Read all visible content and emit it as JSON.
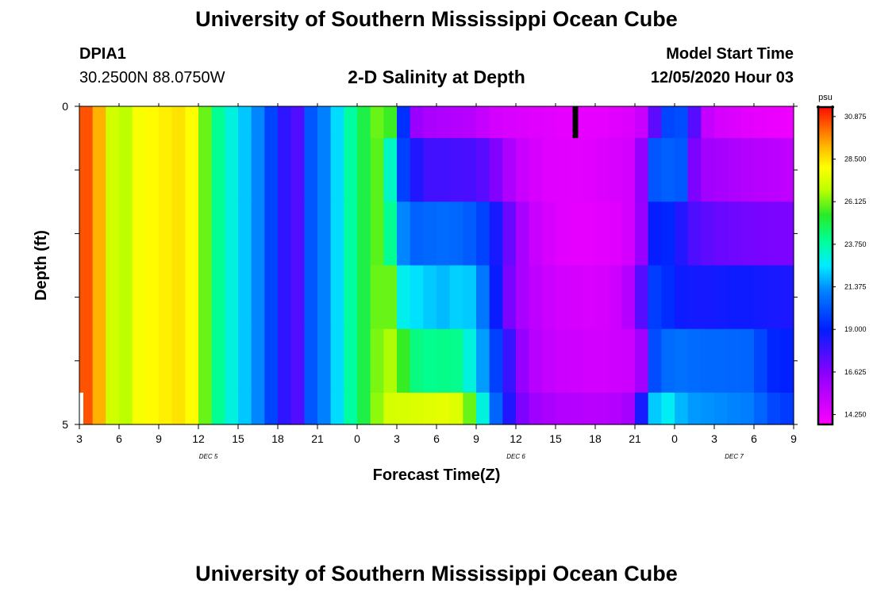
{
  "header": {
    "title": "University of Southern Mississippi Ocean Cube",
    "station_id": "DPIA1",
    "coordinates": "30.2500N 88.0750W",
    "chart_title": "2-D Salinity at Depth",
    "start_label": "Model Start Time",
    "start_value": "12/05/2020 Hour 03"
  },
  "footer": {
    "title": "University of Southern Mississippi Ocean Cube"
  },
  "chart_data": {
    "type": "heatmap",
    "title": "2-D Salinity at Depth",
    "xlabel": "Forecast Time(Z)",
    "ylabel": "Depth (ft)",
    "x_ticks": [
      "3",
      "6",
      "9",
      "12",
      "15",
      "18",
      "21",
      "0",
      "3",
      "6",
      "9",
      "12",
      "15",
      "18",
      "21",
      "0",
      "3",
      "6",
      "9"
    ],
    "x_range_hours": [
      0,
      54
    ],
    "date_labels": [
      {
        "text": "DEC 5",
        "hour": 9.75
      },
      {
        "text": "DEC 6",
        "hour": 33
      },
      {
        "text": "DEC 7",
        "hour": 49.5
      }
    ],
    "y_ticks": [
      "0",
      "5"
    ],
    "ylim": [
      0,
      5
    ],
    "depth_layer_bounds": [
      0,
      0.5,
      1.5,
      2.5,
      3.5,
      4.5,
      5
    ],
    "colorbar": {
      "unit": "psu",
      "ticks": [
        "30.875",
        "28.500",
        "26.125",
        "23.750",
        "21.375",
        "19.000",
        "16.625",
        "14.250"
      ],
      "range": [
        13.7,
        31.4
      ]
    },
    "salinity_profiles": [
      {
        "layer": "surface",
        "points": [
          [
            0,
            31
          ],
          [
            1,
            30
          ],
          [
            2,
            28.5
          ],
          [
            3,
            25.8
          ],
          [
            4,
            27.8
          ],
          [
            8,
            28.6
          ],
          [
            9,
            27.5
          ],
          [
            10,
            24.5
          ],
          [
            12,
            22.5
          ],
          [
            13.5,
            21.2
          ],
          [
            14.5,
            19.8
          ],
          [
            15.5,
            18.2
          ],
          [
            16,
            17.4
          ],
          [
            16.5,
            17.6
          ],
          [
            17,
            18.2
          ],
          [
            17.5,
            20.2
          ],
          [
            19,
            21.5
          ],
          [
            20,
            23.2
          ],
          [
            21,
            24.5
          ],
          [
            22,
            25.5
          ],
          [
            23,
            26.5
          ],
          [
            23.8,
            25
          ],
          [
            24.3,
            21
          ],
          [
            24.6,
            18.6
          ],
          [
            25,
            17.3
          ],
          [
            25.3,
            16.3
          ],
          [
            26,
            15.8
          ],
          [
            30,
            15.4
          ],
          [
            31,
            14.8
          ],
          [
            33,
            14.6
          ],
          [
            37,
            14.3
          ],
          [
            39,
            14.3
          ],
          [
            42,
            14.6
          ],
          [
            43,
            15.4
          ],
          [
            43.3,
            16.6
          ],
          [
            44,
            19.2
          ],
          [
            45,
            20.5
          ],
          [
            46,
            19.5
          ],
          [
            46.5,
            17.5
          ],
          [
            47,
            15.5
          ],
          [
            48,
            14.8
          ],
          [
            51,
            14.3
          ],
          [
            54,
            14.1
          ]
        ]
      },
      {
        "layer": "layer2",
        "points": [
          [
            0,
            31
          ],
          [
            1,
            30
          ],
          [
            2,
            28.5
          ],
          [
            3,
            25.8
          ],
          [
            4,
            27.8
          ],
          [
            8,
            28.6
          ],
          [
            9,
            27.5
          ],
          [
            10,
            24.5
          ],
          [
            12,
            22.5
          ],
          [
            13.5,
            21.2
          ],
          [
            14.5,
            19.8
          ],
          [
            15.5,
            18.2
          ],
          [
            16,
            17.4
          ],
          [
            16.5,
            17.6
          ],
          [
            17,
            18.2
          ],
          [
            17.5,
            20.2
          ],
          [
            19,
            21.5
          ],
          [
            20,
            23.2
          ],
          [
            21,
            24.5
          ],
          [
            22,
            25.5
          ],
          [
            23,
            26.2
          ],
          [
            24,
            20.5
          ],
          [
            25,
            19
          ],
          [
            26,
            17.9
          ],
          [
            30,
            17.7
          ],
          [
            31,
            17.2
          ],
          [
            32,
            16.2
          ],
          [
            33,
            15.2
          ],
          [
            35,
            14.5
          ],
          [
            38,
            14.4
          ],
          [
            42,
            14.8
          ],
          [
            42.5,
            16.3
          ],
          [
            43,
            19
          ],
          [
            43.5,
            20.2
          ],
          [
            45,
            20.5
          ],
          [
            46,
            20
          ],
          [
            46.5,
            16.8
          ],
          [
            47.5,
            16
          ],
          [
            49,
            15.8
          ],
          [
            51,
            15.5
          ],
          [
            54,
            15.2
          ]
        ]
      },
      {
        "layer": "layer3",
        "points": [
          [
            0,
            31
          ],
          [
            1,
            30
          ],
          [
            2,
            28.5
          ],
          [
            3,
            25.8
          ],
          [
            4,
            27.8
          ],
          [
            8,
            28.6
          ],
          [
            9,
            27.5
          ],
          [
            10,
            24.5
          ],
          [
            12,
            22.5
          ],
          [
            13.5,
            21.2
          ],
          [
            14.5,
            19.8
          ],
          [
            15.5,
            18.2
          ],
          [
            16,
            17.4
          ],
          [
            16.5,
            17.6
          ],
          [
            17,
            18.2
          ],
          [
            17.5,
            20.2
          ],
          [
            19,
            21.5
          ],
          [
            20,
            23.2
          ],
          [
            21,
            24.5
          ],
          [
            22,
            25.5
          ],
          [
            23,
            26.2
          ],
          [
            23.5,
            24
          ],
          [
            24,
            22
          ],
          [
            25,
            20.4
          ],
          [
            28,
            20.7
          ],
          [
            30,
            20.2
          ],
          [
            31,
            19.4
          ],
          [
            32,
            17.8
          ],
          [
            33,
            16.4
          ],
          [
            34,
            15.2
          ],
          [
            36,
            14.5
          ],
          [
            38,
            14.3
          ],
          [
            41,
            14.5
          ],
          [
            42,
            15
          ],
          [
            42.5,
            16.2
          ],
          [
            43,
            18.5
          ],
          [
            44,
            19.3
          ],
          [
            45,
            19
          ],
          [
            46,
            17.8
          ],
          [
            48,
            17.2
          ],
          [
            51,
            16.9
          ],
          [
            54,
            16.8
          ]
        ]
      },
      {
        "layer": "layer4",
        "points": [
          [
            0,
            31
          ],
          [
            1,
            30
          ],
          [
            2,
            28.5
          ],
          [
            3,
            25.8
          ],
          [
            4,
            27.8
          ],
          [
            8,
            28.6
          ],
          [
            9,
            27.5
          ],
          [
            10,
            24.5
          ],
          [
            12,
            22.5
          ],
          [
            13.5,
            21.2
          ],
          [
            14.5,
            19.8
          ],
          [
            15.5,
            18.2
          ],
          [
            16,
            17.4
          ],
          [
            16.5,
            17.6
          ],
          [
            17,
            18.2
          ],
          [
            17.5,
            20.2
          ],
          [
            19,
            21.5
          ],
          [
            20,
            23.2
          ],
          [
            21,
            24.5
          ],
          [
            22,
            25.5
          ],
          [
            23,
            26.5
          ],
          [
            24,
            25.5
          ],
          [
            24.5,
            22.8
          ],
          [
            26,
            22.2
          ],
          [
            28,
            21.8
          ],
          [
            29,
            22.6
          ],
          [
            30,
            21.6
          ],
          [
            31,
            20.2
          ],
          [
            32,
            17.5
          ],
          [
            33,
            16.2
          ],
          [
            34,
            15.4
          ],
          [
            36,
            14.8
          ],
          [
            39,
            14.6
          ],
          [
            41,
            15
          ],
          [
            42,
            16
          ],
          [
            42.5,
            17.5
          ],
          [
            43,
            19.6
          ],
          [
            44,
            19.8
          ],
          [
            45,
            18.8
          ],
          [
            47,
            18.6
          ],
          [
            50,
            18.8
          ],
          [
            52,
            18.6
          ],
          [
            54,
            18.5
          ]
        ]
      },
      {
        "layer": "layer5",
        "points": [
          [
            0,
            31
          ],
          [
            1,
            30
          ],
          [
            2,
            28.5
          ],
          [
            3,
            25.8
          ],
          [
            4,
            27.8
          ],
          [
            8,
            28.6
          ],
          [
            9,
            27.5
          ],
          [
            10,
            24.5
          ],
          [
            12,
            22.5
          ],
          [
            13.5,
            21.2
          ],
          [
            14.5,
            19.8
          ],
          [
            15.5,
            18.2
          ],
          [
            16,
            17.4
          ],
          [
            16.5,
            17.6
          ],
          [
            17,
            18.2
          ],
          [
            17.5,
            20.2
          ],
          [
            19,
            21.5
          ],
          [
            20,
            23.2
          ],
          [
            21,
            24.5
          ],
          [
            22,
            25.5
          ],
          [
            23,
            26.8
          ],
          [
            24,
            26.5
          ],
          [
            25,
            24.5
          ],
          [
            26,
            24
          ],
          [
            28,
            24.2
          ],
          [
            29,
            24
          ],
          [
            29.5,
            23
          ],
          [
            30.5,
            21.5
          ],
          [
            31,
            20.5
          ],
          [
            32,
            19
          ],
          [
            33,
            17
          ],
          [
            34,
            15.6
          ],
          [
            36,
            15
          ],
          [
            39,
            14.8
          ],
          [
            42,
            15
          ],
          [
            42.5,
            16
          ],
          [
            43,
            19.5
          ],
          [
            44,
            20.5
          ],
          [
            45,
            20.8
          ],
          [
            47,
            20.6
          ],
          [
            51,
            20.5
          ],
          [
            52,
            19.2
          ],
          [
            54,
            19
          ]
        ]
      },
      {
        "layer": "bottom",
        "points": [
          [
            0,
            31
          ],
          [
            1,
            30
          ],
          [
            2,
            28.5
          ],
          [
            3,
            25.8
          ],
          [
            4,
            27.8
          ],
          [
            8,
            28.6
          ],
          [
            9,
            27.5
          ],
          [
            10,
            24.5
          ],
          [
            12,
            22.5
          ],
          [
            13.5,
            21.2
          ],
          [
            14.5,
            19.8
          ],
          [
            15.5,
            18.2
          ],
          [
            16,
            17.4
          ],
          [
            16.5,
            17.6
          ],
          [
            17,
            18.2
          ],
          [
            17.5,
            20.2
          ],
          [
            19,
            21.5
          ],
          [
            20,
            23.2
          ],
          [
            21,
            24.5
          ],
          [
            22,
            25.5
          ],
          [
            23,
            27.2
          ],
          [
            26,
            27.4
          ],
          [
            28,
            27.6
          ],
          [
            29,
            27.2
          ],
          [
            29.5,
            26
          ],
          [
            30,
            24.5
          ],
          [
            31,
            21.5
          ],
          [
            32,
            19.5
          ],
          [
            33,
            17.4
          ],
          [
            34,
            16.2
          ],
          [
            36,
            15.6
          ],
          [
            39,
            15.4
          ],
          [
            41,
            15.6
          ],
          [
            42,
            16.2
          ],
          [
            43,
            21
          ],
          [
            44,
            23.2
          ],
          [
            45,
            22.2
          ],
          [
            46,
            21.5
          ],
          [
            49,
            21.2
          ],
          [
            51,
            21
          ],
          [
            52,
            20
          ],
          [
            54,
            19.5
          ]
        ]
      }
    ],
    "marker": {
      "hour": 37.5,
      "depth_range": [
        0,
        0.5
      ]
    }
  }
}
